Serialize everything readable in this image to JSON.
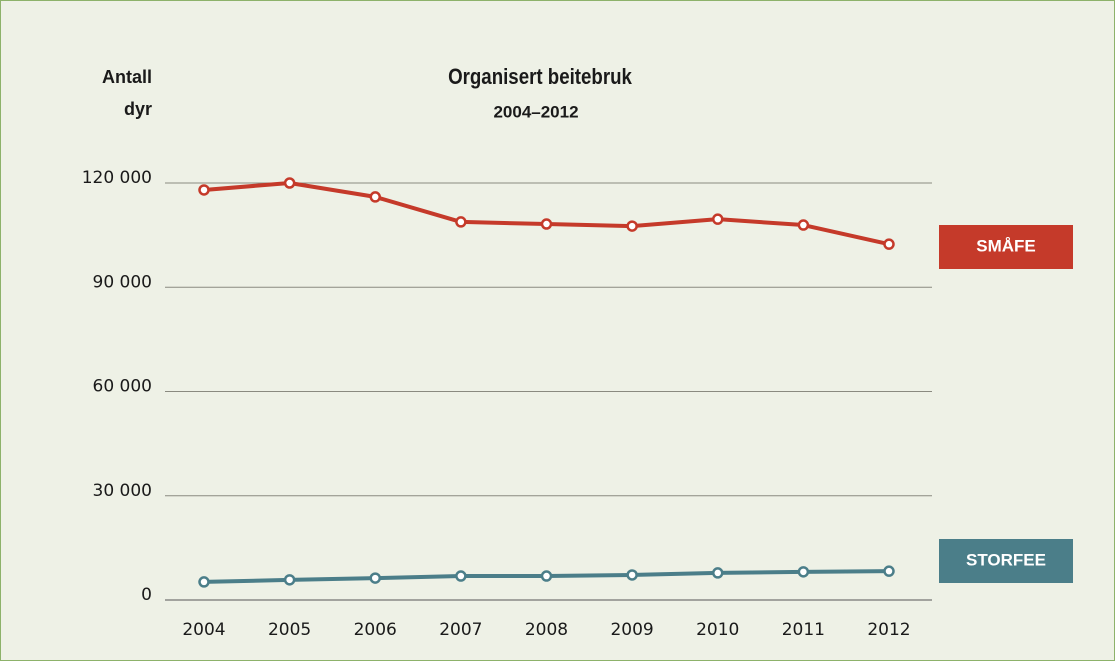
{
  "chart_data": {
    "type": "line",
    "title": "Organisert beitebruk",
    "subtitle": "2004–2012",
    "y_label": [
      "Antall",
      "dyr"
    ],
    "categories": [
      "2004",
      "2005",
      "2006",
      "2007",
      "2008",
      "2009",
      "2010",
      "2011",
      "2012"
    ],
    "series": [
      {
        "name": "SMÅFE",
        "color": "#c53a2a",
        "values": [
          118000,
          120000,
          116000,
          108800,
          108200,
          107600,
          109600,
          107900,
          102400
        ]
      },
      {
        "name": "STORFEE",
        "color": "#4b7e89",
        "values": [
          5200,
          5800,
          6300,
          6900,
          6900,
          7200,
          7800,
          8100,
          8300
        ]
      }
    ],
    "ylim": [
      0,
      120000
    ],
    "yticks": [
      0,
      {
        "value": 30000,
        "label": "30 000"
      },
      {
        "value": 60000,
        "label": "60 000"
      },
      {
        "value": 90000,
        "label": "90 000"
      },
      {
        "value": 120000,
        "label": "120 000"
      }
    ],
    "grid": true
  }
}
